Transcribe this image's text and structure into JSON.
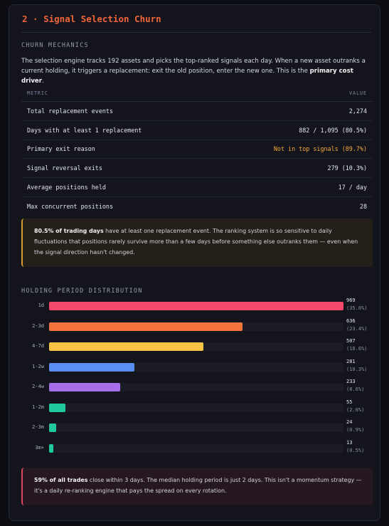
{
  "title": "2 · Signal Selection Churn",
  "mechanics": {
    "label": "CHURN MECHANICS",
    "intro_pre": "The selection engine tracks 192 assets and picks the top-ranked signals each day. When a new asset outranks a current holding, it triggers a replacement: exit the old position, enter the new one. This is the ",
    "intro_bold": "primary cost driver",
    "intro_post": "."
  },
  "table": {
    "header_metric": "METRIC",
    "header_value": "VALUE",
    "rows": [
      {
        "metric": "Total replacement events",
        "value": "2,274"
      },
      {
        "metric": "Days with at least 1 replacement",
        "value": "882 / 1,095 (80.5%)"
      },
      {
        "metric": "Primary exit reason",
        "value": "Not in top signals (89.7%)"
      },
      {
        "metric": "Signal reversal exits",
        "value": "279 (10.3%)"
      },
      {
        "metric": "Average positions held",
        "value": "17 / day"
      },
      {
        "metric": "Max concurrent positions",
        "value": "28"
      }
    ]
  },
  "callout_churn": {
    "bold": "80.5% of trading days",
    "text": " have at least one replacement event. The ranking system is so sensitive to daily fluctuations that positions rarely survive more than a few days before something else outranks them — even when the signal direction hasn't changed."
  },
  "colors": {
    "title": "#f0653a",
    "warn": "#f4a93a",
    "bars": [
      "#f5476a",
      "#f5743e",
      "#f8c244",
      "#5a8ef2",
      "#a56ee8",
      "#23c99e",
      "#23c99e",
      "#23c99e"
    ]
  },
  "chart_data": {
    "type": "bar",
    "orientation": "horizontal",
    "title": "HOLDING PERIOD DISTRIBUTION",
    "categories": [
      "1d",
      "2-3d",
      "4-7d",
      "1-2w",
      "2-4w",
      "1-2m",
      "2-3m",
      "3m+"
    ],
    "values": [
      969,
      636,
      507,
      281,
      233,
      55,
      24,
      13
    ],
    "value_labels": [
      "969",
      "636",
      "507",
      "281",
      "233",
      "55",
      "24",
      "13"
    ],
    "percent_labels": [
      "(35.6%)",
      "(23.4%)",
      "(18.6%)",
      "(10.3%)",
      "(8.6%)",
      "(2.0%)",
      "(0.9%)",
      "(0.5%)"
    ],
    "xlim": [
      0,
      969
    ]
  },
  "callout_summary": {
    "bold": "59% of all trades",
    "text": " close within 3 days. The median holding period is just 2 days. This isn't a momentum strategy — it's a daily re-ranking engine that pays the spread on every rotation."
  }
}
